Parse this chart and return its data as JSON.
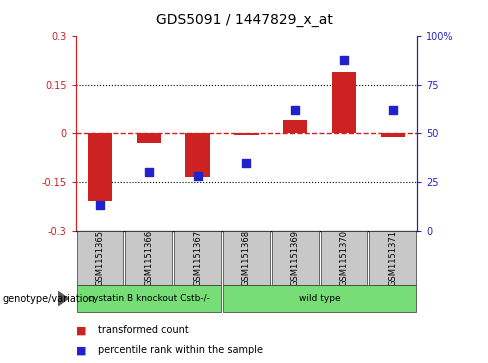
{
  "title": "GDS5091 / 1447829_x_at",
  "samples": [
    "GSM1151365",
    "GSM1151366",
    "GSM1151367",
    "GSM1151368",
    "GSM1151369",
    "GSM1151370",
    "GSM1151371"
  ],
  "transformed_count": [
    -0.21,
    -0.03,
    -0.135,
    -0.005,
    0.04,
    0.19,
    -0.01
  ],
  "percentile_rank": [
    13,
    30,
    28,
    35,
    62,
    88,
    62
  ],
  "ylim_left": [
    -0.3,
    0.3
  ],
  "ylim_right": [
    0,
    100
  ],
  "yticks_left": [
    -0.3,
    -0.15,
    0,
    0.15,
    0.3
  ],
  "yticks_right": [
    0,
    25,
    50,
    75,
    100
  ],
  "bar_color": "#cc2222",
  "dot_color": "#2222cc",
  "dotted_lines": [
    -0.15,
    0.15
  ],
  "group_extents": [
    [
      0,
      3,
      "cystatin B knockout Cstb-/-"
    ],
    [
      3,
      7,
      "wild type"
    ]
  ],
  "group_color": "#77dd77",
  "sample_box_color": "#c8c8c8",
  "legend_items": [
    {
      "label": "transformed count",
      "color": "#cc2222"
    },
    {
      "label": "percentile rank within the sample",
      "color": "#2222cc"
    }
  ],
  "bar_width": 0.5,
  "dot_size": 40,
  "background_color": "#ffffff"
}
